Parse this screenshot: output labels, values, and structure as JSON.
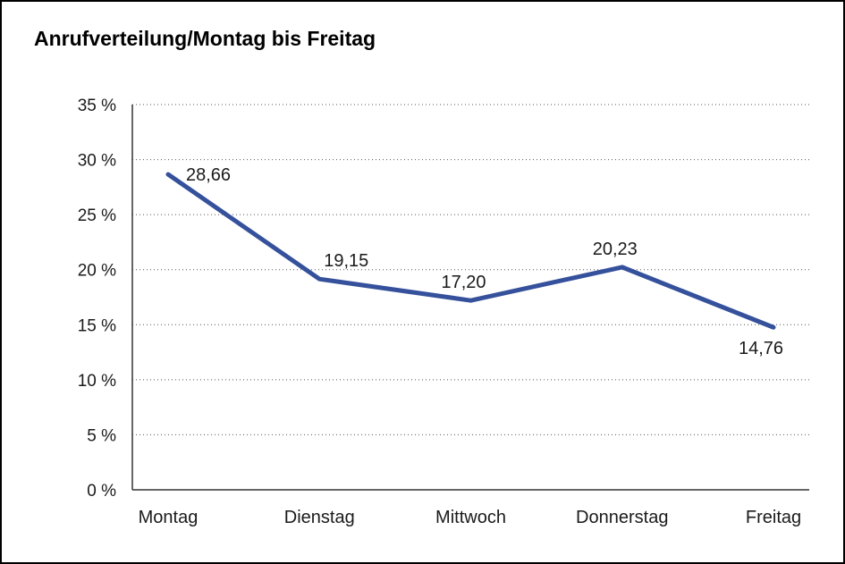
{
  "chart_data": {
    "type": "line",
    "title": "Anrufverteilung/Montag bis Freitag",
    "categories": [
      "Montag",
      "Dienstag",
      "Mittwoch",
      "Donnerstag",
      "Freitag"
    ],
    "values": [
      28.66,
      19.15,
      17.2,
      20.23,
      14.76
    ],
    "value_labels": [
      "28,66",
      "19,15",
      "17,20",
      "20,23",
      "14,76"
    ],
    "label_placements": [
      "right",
      "above-right",
      "above",
      "above",
      "below-left"
    ],
    "ylim": [
      0,
      35
    ],
    "ytick_step": 5,
    "ytick_suffix": " %",
    "xlabel": "",
    "ylabel": "",
    "grid": "dotted-horizontal",
    "legend": "none",
    "line_color": "#35519c",
    "axis_color": "#333333",
    "grid_color": "#555555",
    "text_color": "#1a1a1a"
  }
}
